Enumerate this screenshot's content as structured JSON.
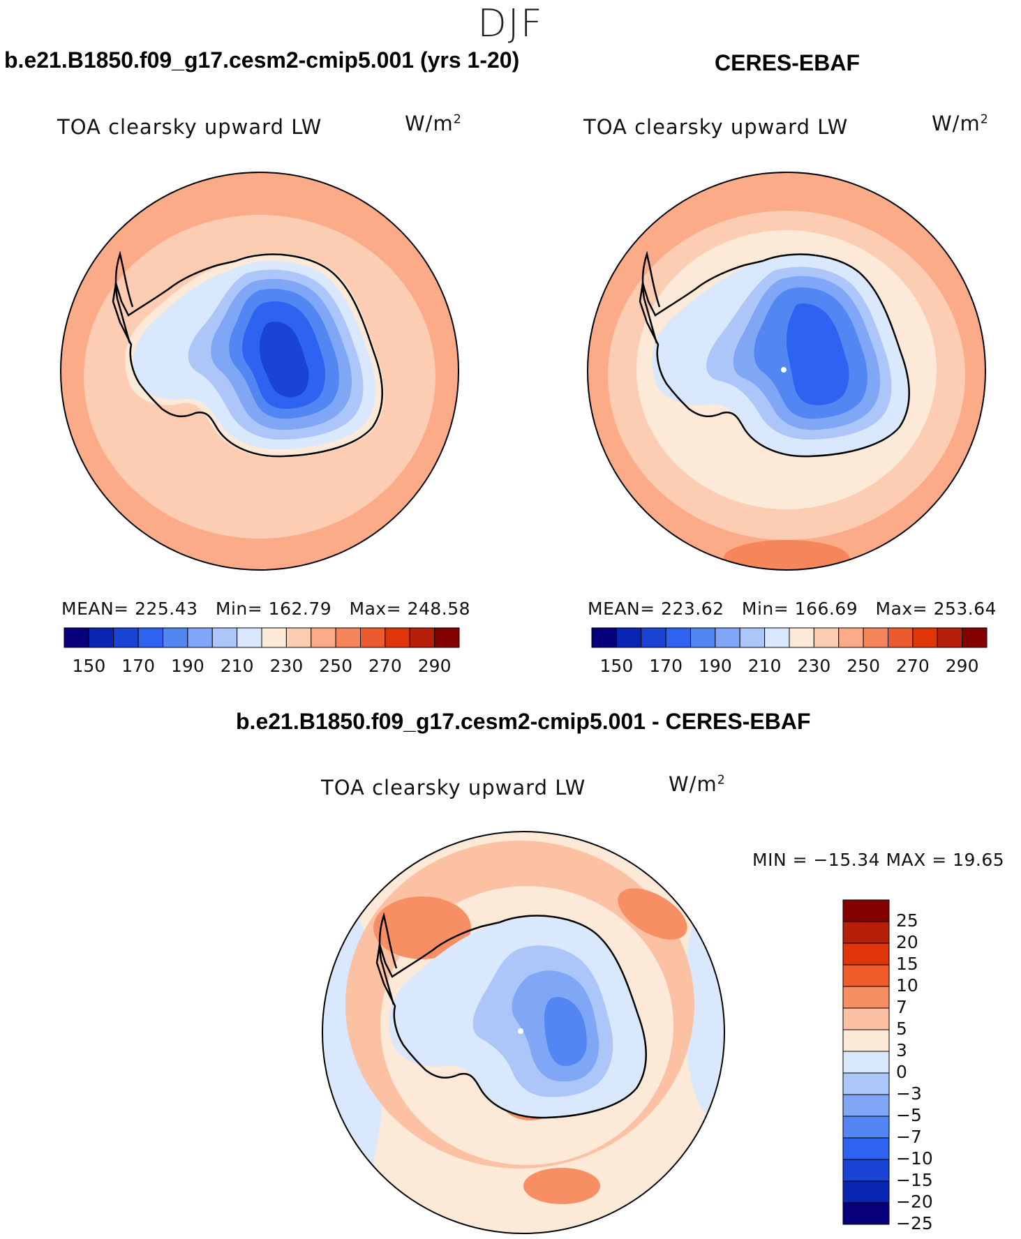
{
  "figure": {
    "season": "DJF"
  },
  "panels": {
    "model": {
      "title": "b.e21.B1850.f09_g17.cesm2-cmip5.001 (yrs 1-20)",
      "variable": "TOA clearsky upward LW",
      "units_base": "W/m",
      "units_exp": "2",
      "stats": {
        "mean_label": "MEAN=",
        "mean": "225.43",
        "min_label": "Min=",
        "min": "162.79",
        "max_label": "Max=",
        "max": "248.58"
      }
    },
    "obs": {
      "title": "CERES-EBAF",
      "variable": "TOA clearsky upward LW",
      "units_base": "W/m",
      "units_exp": "2",
      "stats": {
        "mean_label": "MEAN=",
        "mean": "223.62",
        "min_label": "Min=",
        "min": "166.69",
        "max_label": "Max=",
        "max": "253.64"
      }
    },
    "diff": {
      "title": "b.e21.B1850.f09_g17.cesm2-cmip5.001 - CERES-EBAF",
      "variable": "TOA clearsky upward LW",
      "units_base": "W/m",
      "units_exp": "2",
      "minmax": "MIN = −15.34 MAX =   19.65"
    }
  },
  "colorbars": {
    "absolute": {
      "colors": [
        "#08007a",
        "#0a24b4",
        "#1a44d6",
        "#2e62f0",
        "#5286f2",
        "#7fa7f6",
        "#adc6fa",
        "#d9e8fc",
        "#fde9d8",
        "#fdcdb3",
        "#fbab87",
        "#f58659",
        "#ec5a30",
        "#df3508",
        "#b72008",
        "#850000"
      ],
      "tick_labels": [
        "150",
        "170",
        "190",
        "210",
        "230",
        "250",
        "270",
        "290"
      ]
    },
    "difference": {
      "colors": [
        "#850000",
        "#b72008",
        "#df3508",
        "#f05c2c",
        "#f88e64",
        "#fcc0a3",
        "#fde9d8",
        "#d9e8fc",
        "#adc6fa",
        "#7fa7f6",
        "#5286f2",
        "#2e62f0",
        "#1a44d6",
        "#0a24b4",
        "#08007a"
      ],
      "tick_labels": [
        "25",
        "20",
        "15",
        "10",
        "7",
        "5",
        "3",
        "0",
        "−3",
        "−5",
        "−7",
        "−10",
        "−15",
        "−20",
        "−25"
      ]
    }
  },
  "map_colors": {
    "model_ocean_outer": "#fbab87",
    "model_ocean_inner": "#fdcdb3",
    "obs_ocean_outer": "#fbab87",
    "obs_ocean_inner": "#fdcdb3",
    "obs_ocean_ring": "#fde9d8",
    "diff_ocean": "#fde9d8",
    "diff_warm": "#fcc0a3",
    "diff_hot": "#f88e64",
    "diff_cool": "#d9e8fc",
    "ice_edge": "#fde9d8",
    "ice_l1": "#d9e8fc",
    "ice_l2": "#adc6fa",
    "ice_l3": "#7fa7f6",
    "ice_l4": "#5286f2",
    "ice_l5": "#2e62f0",
    "ice_l6": "#1a44d6"
  }
}
